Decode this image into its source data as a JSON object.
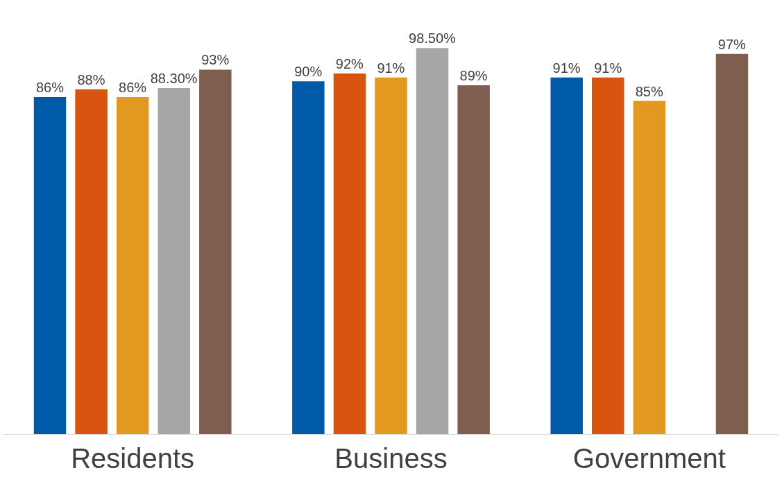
{
  "chart_data": {
    "type": "bar",
    "categories": [
      "Residents",
      "Business",
      "Government"
    ],
    "tick_labels": "x",
    "series": [
      {
        "color": "#005aa8",
        "values": [
          86,
          90,
          91
        ],
        "value_labels": [
          "86%",
          "90%",
          "91%"
        ]
      },
      {
        "color": "#d9540f",
        "values": [
          88,
          92,
          91
        ],
        "value_labels": [
          "88%",
          "92%",
          "91%"
        ]
      },
      {
        "color": "#e3981f",
        "values": [
          86,
          91,
          85
        ],
        "value_labels": [
          "86%",
          "91%",
          "85%"
        ]
      },
      {
        "color": "#a6a6a6",
        "values": [
          88.3,
          98.5,
          null
        ],
        "value_labels": [
          "88.30%",
          "98.50%",
          null
        ]
      },
      {
        "color": "#7f5e4f",
        "values": [
          93,
          89,
          97
        ],
        "value_labels": [
          "93%",
          "89%",
          "97%"
        ]
      }
    ]
  }
}
